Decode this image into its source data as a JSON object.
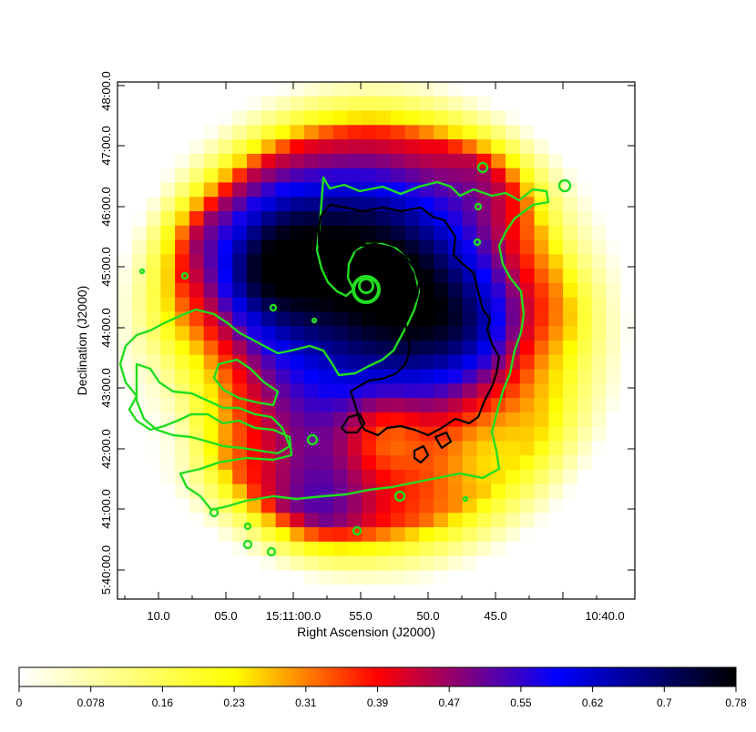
{
  "chart_data": {
    "type": "heatmap",
    "xlabel": "Right Ascension (J2000)",
    "ylabel": "Declination (J2000)",
    "x_ticks": [
      "10.0",
      "05.0",
      "15:11:00.0",
      "55.0",
      "50.0",
      "45.0",
      "10:40.0"
    ],
    "y_ticks": [
      "5:40:00.0",
      "41:00.0",
      "42:00.0",
      "43:00.0",
      "44:00.0",
      "45:00.0",
      "46:00.0",
      "47:00.0",
      "48:00.0"
    ],
    "colorbar": {
      "ticks": [
        "0",
        "0.078",
        "0.16",
        "0.23",
        "0.31",
        "0.39",
        "0.47",
        "0.55",
        "0.62",
        "0.7",
        "0.78"
      ],
      "min": 0,
      "max": 0.78,
      "colormap": [
        "#ffffff",
        "#ffff00",
        "#ff0000",
        "#0000ff",
        "#000000"
      ]
    },
    "contour_colors": {
      "green": "#22dd22",
      "black": "#000000"
    },
    "blobs": [
      {
        "u": 0.5,
        "v": 0.5,
        "amp": 0.28,
        "s": 0.42
      },
      {
        "u": 0.48,
        "v": 0.47,
        "amp": 0.3,
        "s": 0.26
      },
      {
        "u": 0.47,
        "v": 0.3,
        "amp": 0.2,
        "s": 0.12
      },
      {
        "u": 0.3,
        "v": 0.27,
        "amp": 0.14,
        "s": 0.08
      },
      {
        "u": 0.3,
        "v": 0.4,
        "amp": 0.12,
        "s": 0.08
      },
      {
        "u": 0.62,
        "v": 0.44,
        "amp": 0.14,
        "s": 0.1
      },
      {
        "u": 0.72,
        "v": 0.17,
        "amp": 0.1,
        "s": 0.07
      },
      {
        "u": 0.38,
        "v": 0.84,
        "amp": 0.16,
        "s": 0.08
      },
      {
        "u": 0.25,
        "v": 0.37,
        "amp": 0.08,
        "s": 0.06
      },
      {
        "u": 0.12,
        "v": 0.28,
        "amp": 0.1,
        "s": 0.06
      },
      {
        "u": 0.7,
        "v": 0.48,
        "amp": 0.06,
        "s": 0.06
      },
      {
        "u": 0.1,
        "v": 0.6,
        "amp": -0.2,
        "s": 0.1
      },
      {
        "u": 0.06,
        "v": 0.72,
        "amp": -0.12,
        "s": 0.06
      },
      {
        "u": 0.52,
        "v": 0.68,
        "amp": -0.18,
        "s": 0.06
      },
      {
        "u": 0.7,
        "v": 0.7,
        "amp": -0.14,
        "s": 0.08
      },
      {
        "u": 0.86,
        "v": 0.56,
        "amp": -0.1,
        "s": 0.08
      },
      {
        "u": 0.88,
        "v": 0.3,
        "amp": -0.1,
        "s": 0.08
      }
    ]
  }
}
